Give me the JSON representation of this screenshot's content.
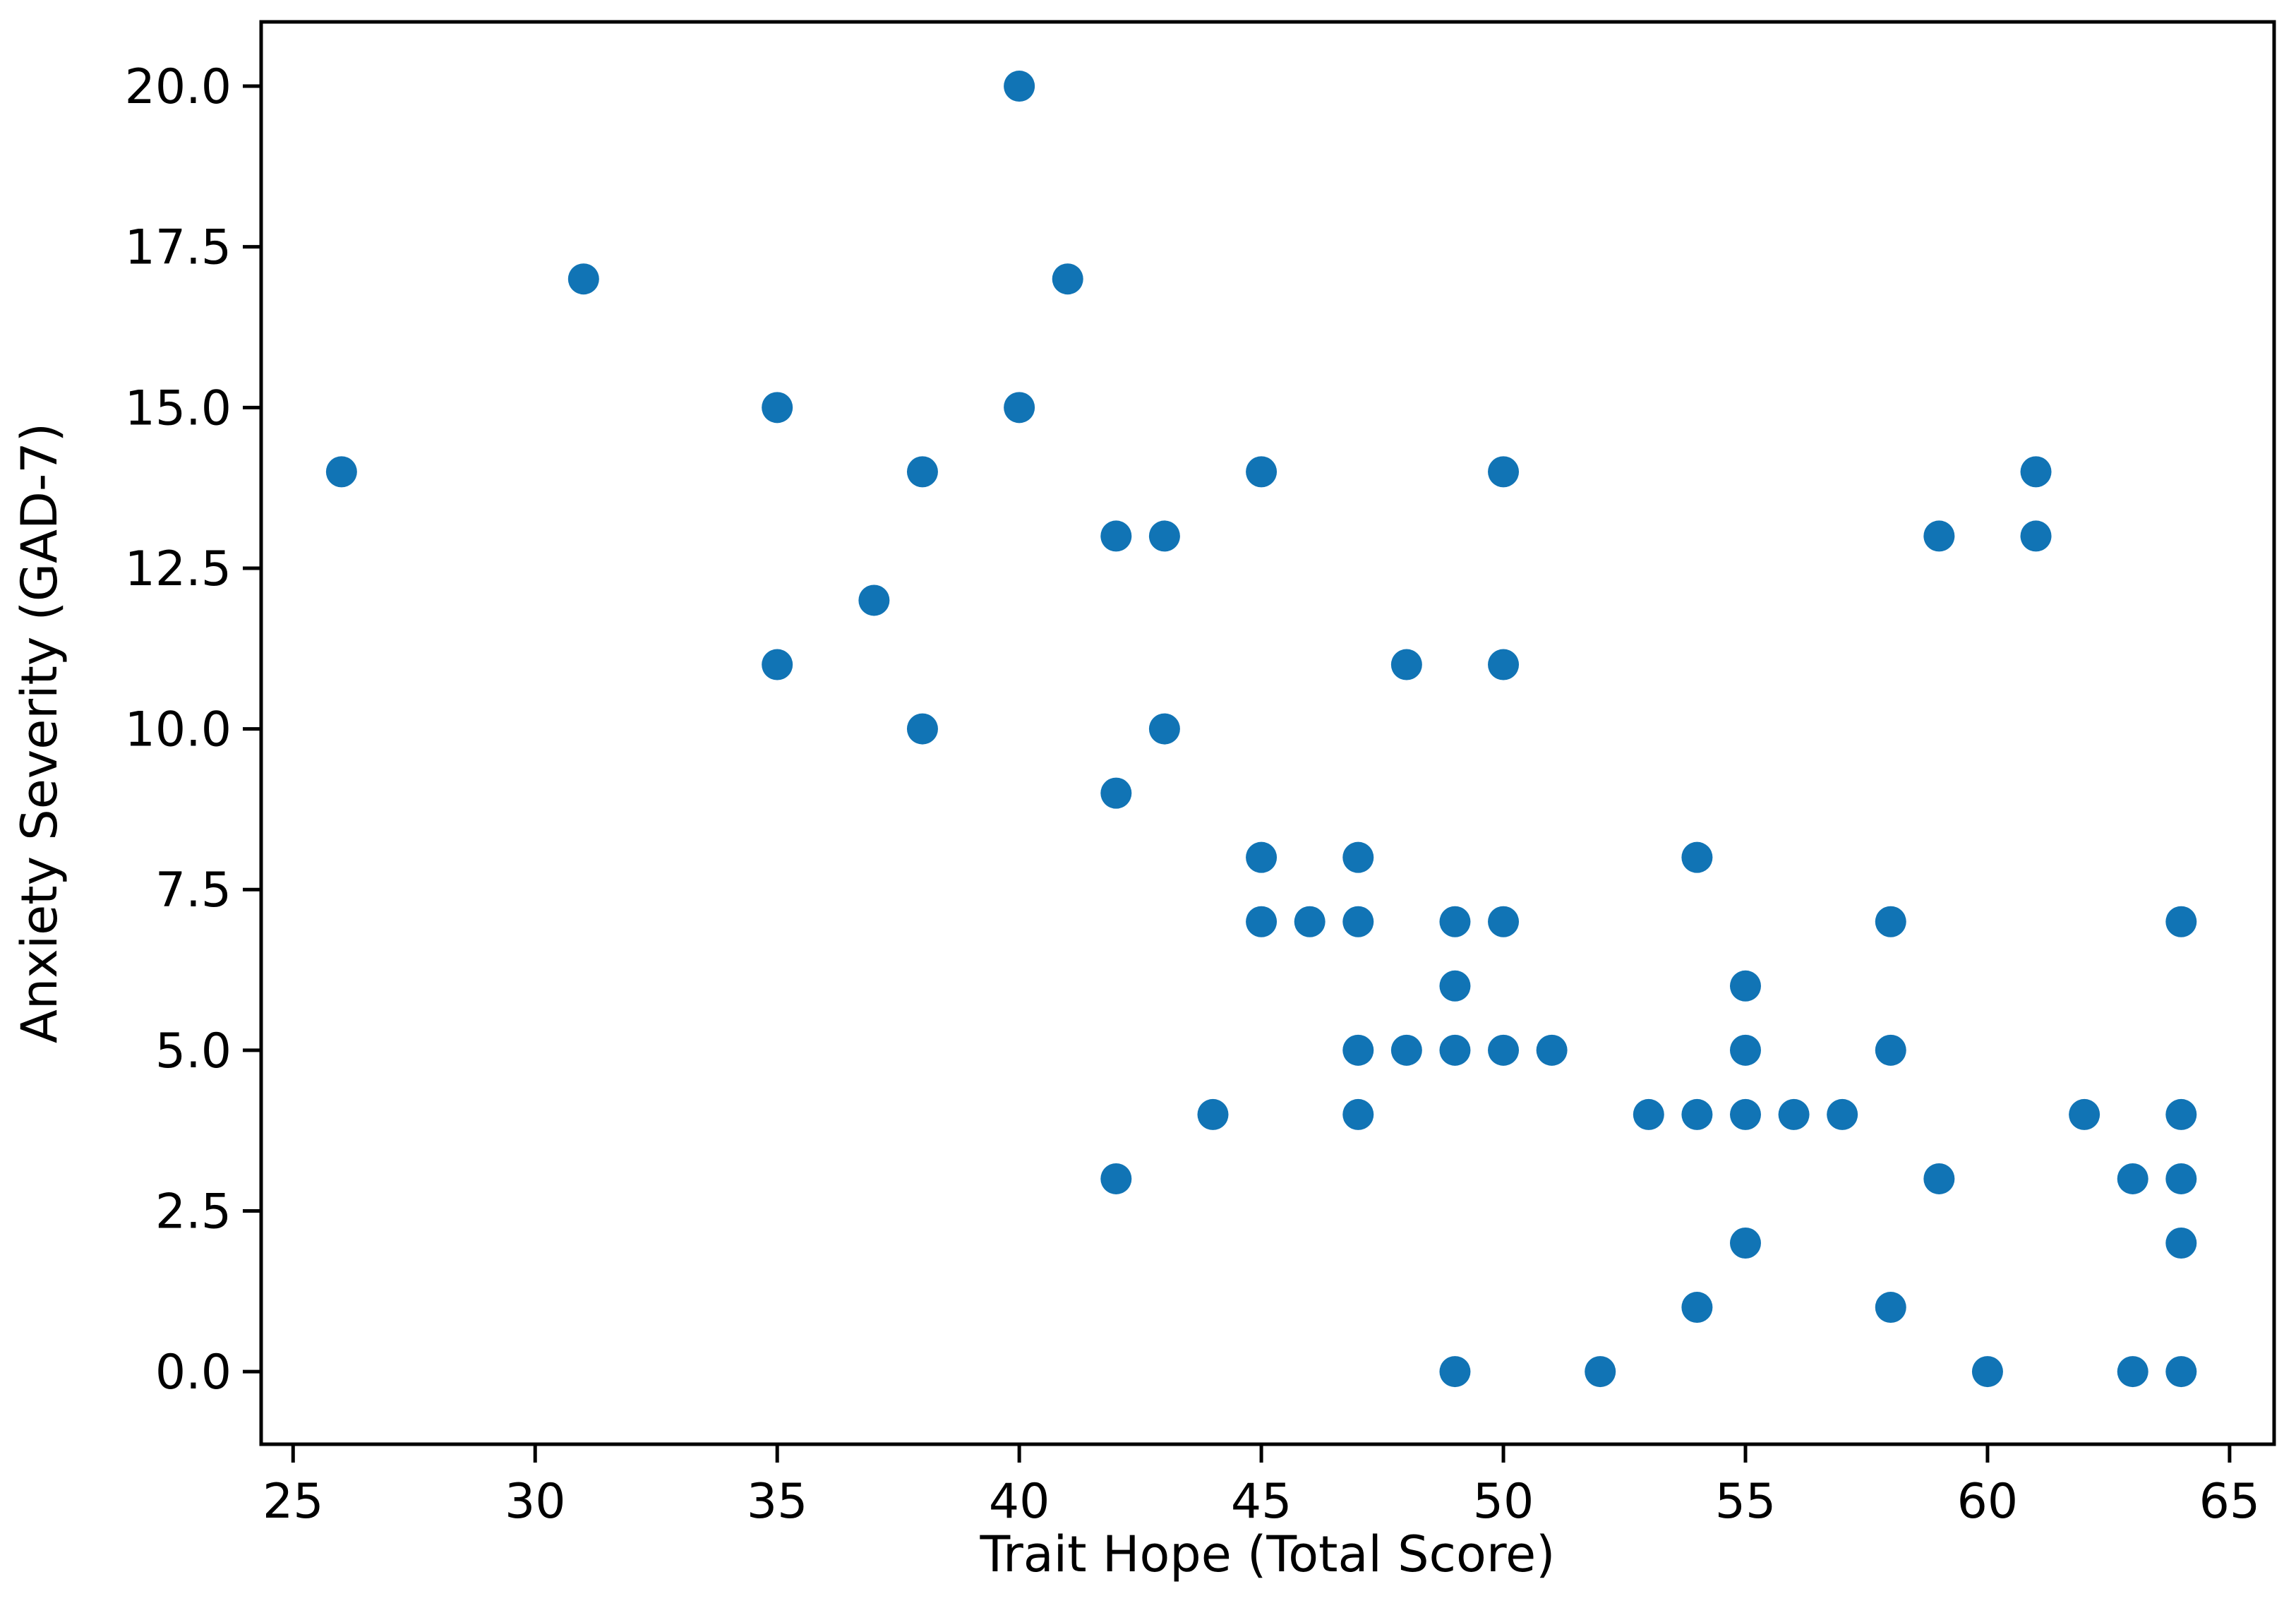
{
  "chart_data": {
    "type": "scatter",
    "title": "",
    "xlabel": "Trait Hope (Total Score)",
    "ylabel": "Anxiety Severity (GAD-7)",
    "xlim": [
      24.34,
      65.92
    ],
    "ylim": [
      -1.13,
      21.0
    ],
    "x_ticks": [
      25,
      30,
      35,
      40,
      45,
      50,
      55,
      60,
      65
    ],
    "x_tick_labels": [
      "25",
      "30",
      "35",
      "40",
      "45",
      "50",
      "55",
      "60",
      "65"
    ],
    "y_ticks": [
      0,
      2.5,
      5,
      7.5,
      10,
      12.5,
      15,
      17.5,
      20
    ],
    "y_tick_labels": [
      "0.0",
      "2.5",
      "5.0",
      "7.5",
      "10.0",
      "12.5",
      "15.0",
      "17.5",
      "20.0"
    ],
    "grid": false,
    "legend": null,
    "marker": {
      "shape": "circle",
      "color": "#1174b5",
      "radius_px": 22
    },
    "axis_color": "#000000",
    "background": "#ffffff",
    "points": [
      [
        26,
        14
      ],
      [
        31,
        17
      ],
      [
        35,
        15
      ],
      [
        35,
        11
      ],
      [
        37,
        12
      ],
      [
        38,
        14
      ],
      [
        38,
        10
      ],
      [
        40,
        20
      ],
      [
        40,
        15
      ],
      [
        41,
        17
      ],
      [
        42,
        13
      ],
      [
        42,
        9
      ],
      [
        42,
        3
      ],
      [
        43,
        13
      ],
      [
        43,
        10
      ],
      [
        44,
        4
      ],
      [
        45,
        14
      ],
      [
        45,
        8
      ],
      [
        45,
        7
      ],
      [
        46,
        7
      ],
      [
        47,
        8
      ],
      [
        47,
        7
      ],
      [
        47,
        5
      ],
      [
        47,
        4
      ],
      [
        48,
        11
      ],
      [
        48,
        5
      ],
      [
        49,
        7
      ],
      [
        49,
        6
      ],
      [
        49,
        5
      ],
      [
        49,
        0
      ],
      [
        50,
        14
      ],
      [
        50,
        11
      ],
      [
        50,
        7
      ],
      [
        50,
        5
      ],
      [
        51,
        5
      ],
      [
        52,
        0
      ],
      [
        53,
        4
      ],
      [
        54,
        8
      ],
      [
        54,
        4
      ],
      [
        54,
        1
      ],
      [
        55,
        6
      ],
      [
        55,
        5
      ],
      [
        55,
        4
      ],
      [
        55,
        2
      ],
      [
        56,
        4
      ],
      [
        57,
        4
      ],
      [
        58,
        7
      ],
      [
        58,
        5
      ],
      [
        58,
        1
      ],
      [
        59,
        13
      ],
      [
        59,
        3
      ],
      [
        60,
        0
      ],
      [
        61,
        14
      ],
      [
        61,
        13
      ],
      [
        62,
        4
      ],
      [
        63,
        3
      ],
      [
        63,
        0
      ],
      [
        64,
        7
      ],
      [
        64,
        4
      ],
      [
        64,
        3
      ],
      [
        64,
        2
      ],
      [
        64,
        0
      ]
    ]
  }
}
